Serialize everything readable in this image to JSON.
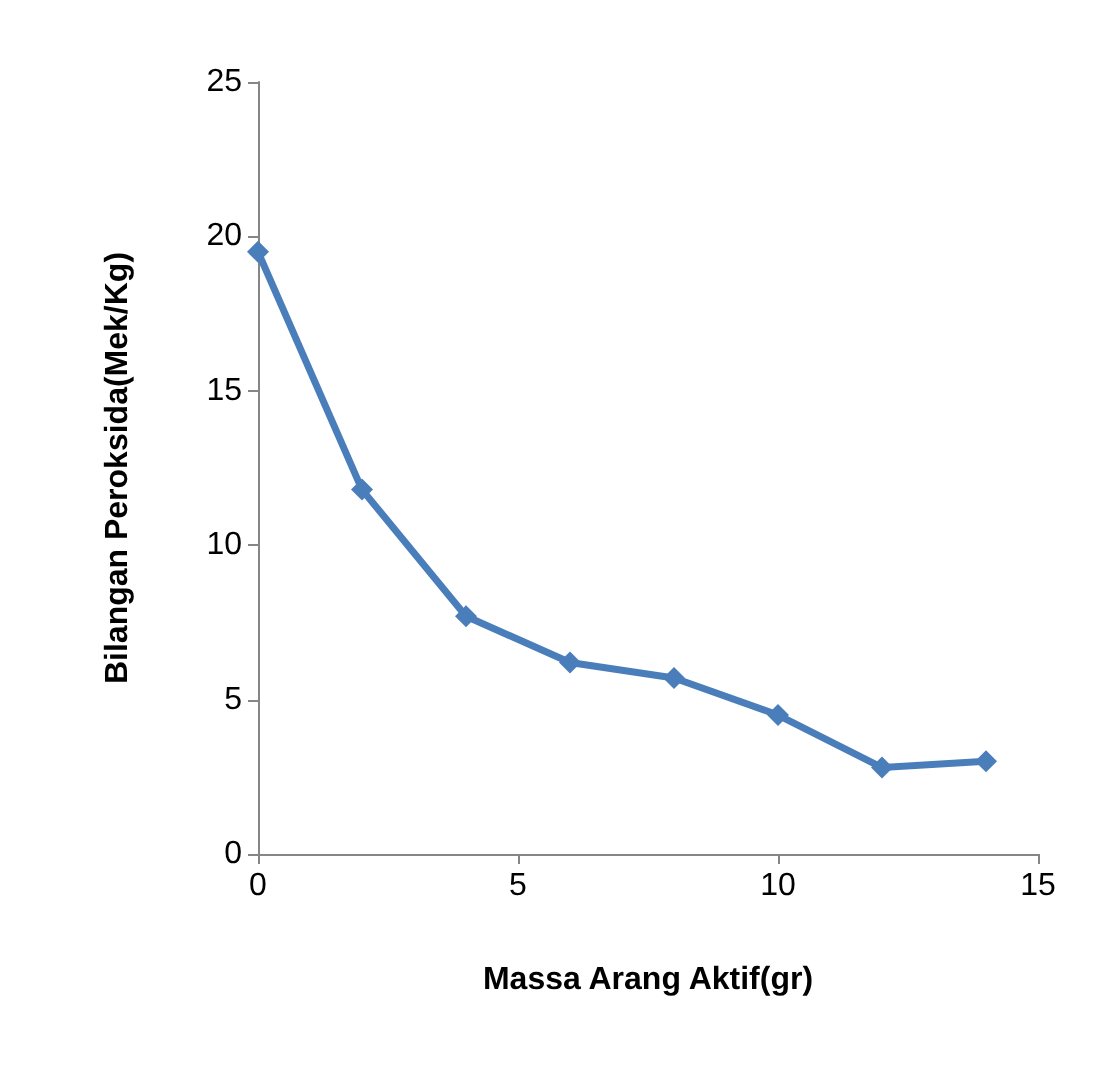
{
  "chart_data": {
    "type": "line",
    "xlabel": "Massa Arang Aktif(gr)",
    "ylabel": "Bilangan Peroksida(Mek/Kg)",
    "x": [
      0,
      2,
      4,
      6,
      8,
      10,
      12,
      14
    ],
    "series": [
      {
        "color": "#4a7ebb",
        "values": [
          19.5,
          11.8,
          7.7,
          6.2,
          5.7,
          4.5,
          2.8,
          3.0
        ]
      }
    ],
    "xlim": [
      0,
      15
    ],
    "xticks": [
      0,
      5,
      10,
      15
    ],
    "ylim": [
      0,
      25
    ],
    "yticks": [
      0,
      5,
      10,
      15,
      20,
      25
    ],
    "grid": false,
    "marker": "diamond",
    "line_style": "solid"
  }
}
